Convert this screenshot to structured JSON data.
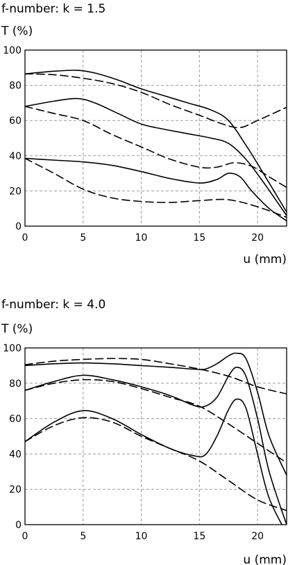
{
  "chart_data": [
    {
      "type": "line",
      "title": "f-number: k = 1.5",
      "ylabel": "T (%)",
      "xlabel": "u (mm)",
      "xlim": [
        0,
        22.5
      ],
      "ylim": [
        0,
        100
      ],
      "xticks": [
        0,
        5,
        10,
        15,
        20
      ],
      "yticks": [
        0,
        20,
        40,
        60,
        80,
        100
      ],
      "grid": true,
      "series": [
        {
          "style": "solid",
          "x": [
            0,
            2.5,
            4.5,
            6,
            8,
            10,
            12,
            14,
            16,
            17.5,
            19,
            20.5,
            22.5
          ],
          "y": [
            86.5,
            88,
            88.5,
            87,
            83,
            78,
            74,
            70,
            66,
            60,
            46,
            30,
            8
          ]
        },
        {
          "style": "dashed",
          "x": [
            0,
            2.5,
            5,
            7.5,
            10,
            12.5,
            15,
            17,
            18.5,
            20,
            22.5
          ],
          "y": [
            86.5,
            86,
            84,
            81,
            76,
            69,
            63,
            58,
            56,
            60,
            67.5
          ]
        },
        {
          "style": "solid",
          "x": [
            0,
            2.5,
            4.5,
            6,
            8,
            10,
            12,
            14,
            16,
            17.5,
            19,
            20.5,
            22.5
          ],
          "y": [
            68,
            71,
            72.5,
            70,
            64,
            58,
            55,
            52.5,
            50,
            47,
            38,
            25,
            6
          ]
        },
        {
          "style": "dashed",
          "x": [
            0,
            2.5,
            5,
            7.5,
            10,
            12.5,
            15,
            16.5,
            18,
            19.5,
            21,
            22.5
          ],
          "y": [
            68,
            64,
            60,
            52,
            45,
            38,
            33.5,
            33.5,
            36,
            34,
            28,
            22
          ]
        },
        {
          "style": "solid",
          "x": [
            0,
            2.5,
            5,
            7.5,
            10,
            12.5,
            15,
            16.5,
            17.5,
            18.5,
            19.5,
            21,
            22.5
          ],
          "y": [
            38.5,
            37.5,
            36.5,
            34.5,
            31,
            27,
            24.5,
            26.5,
            30,
            28,
            20,
            10,
            3
          ]
        },
        {
          "style": "dashed",
          "x": [
            0,
            2.5,
            5,
            7.5,
            10,
            12.5,
            15,
            17.5,
            20,
            22.5
          ],
          "y": [
            38.5,
            30,
            21,
            16,
            14,
            13.5,
            14.5,
            15,
            11,
            5
          ]
        }
      ]
    },
    {
      "type": "line",
      "title": "f-number: k = 4.0",
      "ylabel": "T (%)",
      "xlabel": "u (mm)",
      "xlim": [
        0,
        22.5
      ],
      "ylim": [
        0,
        100
      ],
      "xticks": [
        0,
        5,
        10,
        15,
        20
      ],
      "yticks": [
        0,
        20,
        40,
        60,
        80,
        100
      ],
      "grid": true,
      "series": [
        {
          "style": "solid",
          "x": [
            0,
            2.5,
            5,
            7.5,
            10,
            12.5,
            14.5,
            15.5,
            16.5,
            17.5,
            18.2,
            19,
            20,
            21,
            22.5
          ],
          "y": [
            90,
            91,
            91.5,
            91,
            90,
            89,
            88,
            88,
            91,
            95.5,
            97,
            94,
            75,
            50,
            28
          ]
        },
        {
          "style": "dashed",
          "x": [
            0,
            2.5,
            5,
            7.5,
            10,
            12.5,
            15,
            17.5,
            20,
            22.5
          ],
          "y": [
            90.5,
            92.5,
            93.5,
            94,
            93.5,
            91,
            88,
            84,
            78,
            74
          ]
        },
        {
          "style": "solid",
          "x": [
            0,
            2.5,
            5,
            7.5,
            10,
            12.5,
            14.5,
            15.5,
            16.5,
            17.5,
            18.2,
            19,
            20,
            21,
            22.5
          ],
          "y": [
            76,
            81,
            84.5,
            82,
            78,
            73,
            67.5,
            67,
            72,
            84,
            89,
            84,
            60,
            30,
            0
          ]
        },
        {
          "style": "dashed",
          "x": [
            0,
            2.5,
            5,
            7.5,
            10,
            12.5,
            15,
            17.5,
            20,
            22.5
          ],
          "y": [
            76,
            80,
            82,
            81,
            77,
            72,
            67,
            57,
            46,
            35
          ]
        },
        {
          "style": "solid",
          "x": [
            0,
            2.5,
            5,
            7.5,
            10,
            12.5,
            14.5,
            15.5,
            16.5,
            17.5,
            18.2,
            19,
            20,
            21,
            22.5
          ],
          "y": [
            47,
            58,
            64.5,
            60,
            51,
            43,
            39,
            39.5,
            50,
            65,
            71,
            66,
            40,
            15,
            -5
          ]
        },
        {
          "style": "dashed",
          "x": [
            0,
            2.5,
            5,
            7.5,
            10,
            12.5,
            15,
            17.5,
            20,
            22.5
          ],
          "y": [
            47,
            56,
            60.5,
            58,
            50,
            43,
            36,
            25,
            14,
            8
          ]
        }
      ]
    }
  ]
}
